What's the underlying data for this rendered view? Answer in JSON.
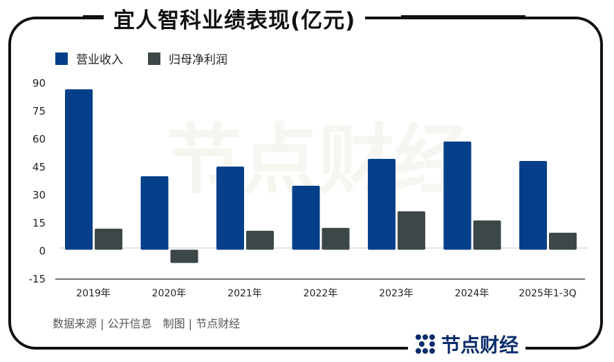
{
  "title": "宜人智科业绩表现(亿元)",
  "source": "数据来源 | 公开信息　制图 | 节点财经",
  "logo_text": "节点财经",
  "colors": {
    "revenue": "#053f8a",
    "profit": "#3c4748",
    "frame": "#111111"
  },
  "chart_data": {
    "type": "bar",
    "title": "宜人智科业绩表现(亿元)",
    "categories": [
      "2019年",
      "2020年",
      "2021年",
      "2022年",
      "2023年",
      "2024年",
      "2025年1-3Q"
    ],
    "series": [
      {
        "name": "营业收入",
        "values": [
          86.0,
          39.4,
          44.6,
          34.3,
          48.7,
          58.0,
          47.6
        ]
      },
      {
        "name": "归母净利润",
        "values": [
          11.3,
          -7.1,
          10.2,
          11.7,
          20.6,
          15.7,
          9.1
        ]
      }
    ],
    "yticks": [
      "90",
      "75",
      "60",
      "45",
      "30",
      "15",
      "0",
      "-15"
    ],
    "ylim": [
      -15,
      90
    ],
    "grid": false,
    "legend": "top-left"
  }
}
